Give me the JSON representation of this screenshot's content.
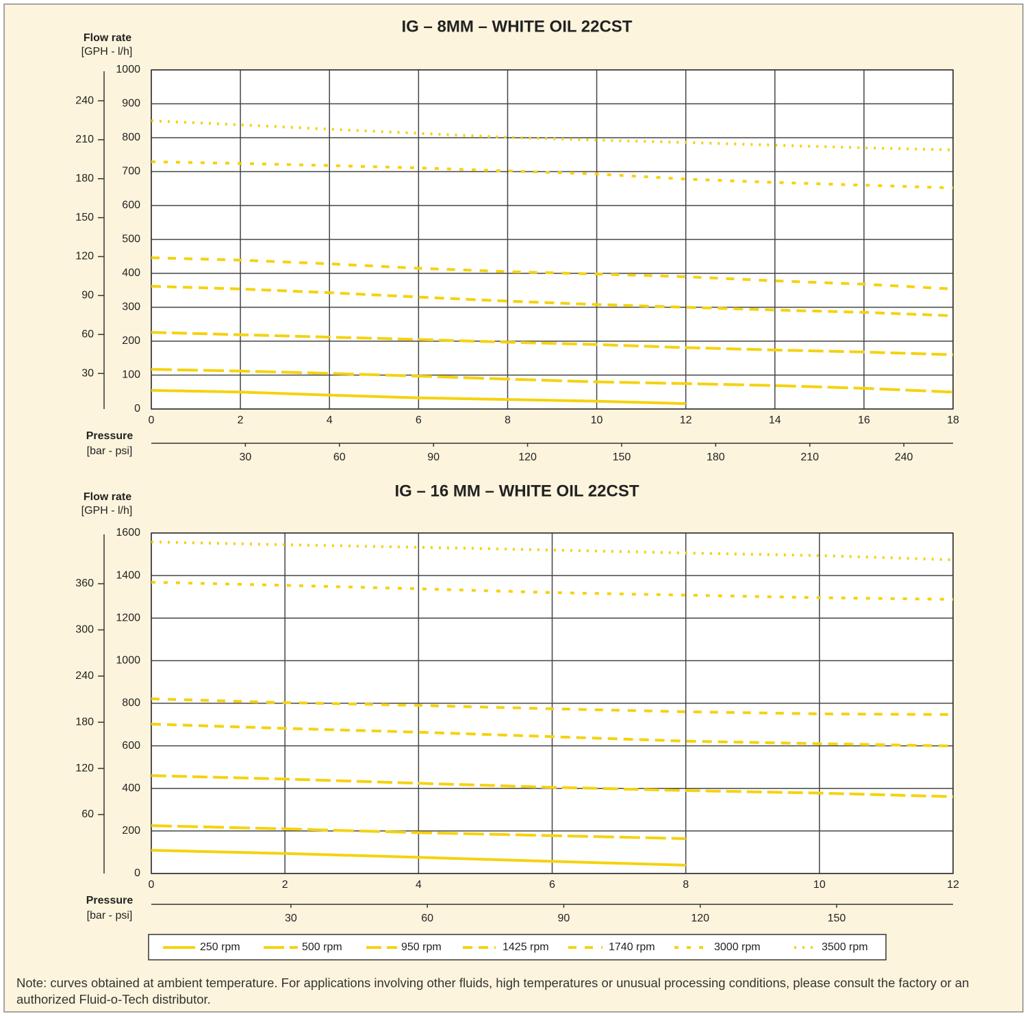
{
  "chart_data": [
    {
      "type": "line",
      "title": "IG – 8MM – WHITE OIL 22CST",
      "y_label": "Flow rate",
      "y_unit_label": "[GPH - l/h]",
      "x_label": "Pressure",
      "x_unit_label": "[bar - psi]",
      "xlim": [
        0,
        18
      ],
      "xticks": [
        0,
        2,
        4,
        6,
        8,
        10,
        12,
        14,
        16,
        18
      ],
      "ylim": [
        0,
        1000
      ],
      "yticks": [
        0,
        100,
        200,
        300,
        400,
        500,
        600,
        700,
        800,
        900,
        1000
      ],
      "y2lim": [
        2.6,
        263.8
      ],
      "y2ticks": [
        30,
        60,
        90,
        120,
        150,
        180,
        210,
        240
      ],
      "x2lim": [
        0,
        255.7
      ],
      "x2ticks": [
        30,
        60,
        90,
        120,
        150,
        180,
        210,
        240
      ],
      "grid": true,
      "series": [
        {
          "color": "#f5d20f",
          "x": [
            0,
            2,
            4,
            6,
            8,
            10,
            12
          ],
          "values": [
            55,
            50,
            41,
            33,
            28,
            23,
            16
          ]
        },
        {
          "color": "#f5d20f",
          "x": [
            0,
            2,
            4,
            6,
            8,
            10,
            12,
            14,
            16,
            18
          ],
          "values": [
            117,
            112,
            105,
            97,
            88,
            80,
            75,
            69,
            61,
            50
          ]
        },
        {
          "color": "#f5d20f",
          "x": [
            0,
            2,
            4,
            6,
            8,
            10,
            12,
            14,
            16,
            18
          ],
          "values": [
            226,
            219,
            212,
            205,
            197,
            190,
            181,
            174,
            168,
            160
          ]
        },
        {
          "color": "#f5d20f",
          "x": [
            0,
            2,
            4,
            6,
            8,
            10,
            12,
            14,
            16,
            18
          ],
          "values": [
            362,
            354,
            343,
            330,
            318,
            308,
            300,
            292,
            285,
            275
          ]
        },
        {
          "color": "#f5d20f",
          "x": [
            0,
            2,
            4,
            6,
            8,
            10,
            12,
            14,
            16,
            18
          ],
          "values": [
            446,
            439,
            428,
            415,
            405,
            398,
            390,
            378,
            368,
            354
          ]
        },
        {
          "color": "#f5d20f",
          "x": [
            0,
            2,
            4,
            6,
            8,
            10,
            12,
            14,
            16,
            18
          ],
          "values": [
            729,
            724,
            718,
            711,
            702,
            693,
            678,
            668,
            660,
            652
          ]
        },
        {
          "color": "#f5d20f",
          "x": [
            0,
            2,
            4,
            6,
            8,
            10,
            12,
            14,
            16,
            18
          ],
          "values": [
            850,
            838,
            825,
            813,
            801,
            793,
            786,
            778,
            770,
            764
          ]
        }
      ]
    },
    {
      "type": "line",
      "title": "IG – 16 MM – WHITE OIL 22CST",
      "y_label": "Flow rate",
      "y_unit_label": "[GPH - l/h]",
      "x_label": "Pressure",
      "x_unit_label": "[bar - psi]",
      "xlim": [
        0,
        12
      ],
      "xticks": [
        0,
        2,
        4,
        6,
        8,
        10,
        12
      ],
      "ylim": [
        0,
        1600
      ],
      "yticks": [
        0,
        200,
        400,
        600,
        800,
        1000,
        1200,
        1400,
        1600
      ],
      "y2lim": [
        -16.6,
        425.9
      ],
      "y2ticks": [
        60,
        120,
        180,
        240,
        300,
        360
      ],
      "x2lim": [
        -0.7,
        175.6
      ],
      "x2ticks": [
        30,
        60,
        90,
        120,
        150
      ],
      "grid": true,
      "series": [
        {
          "name": "250 rpm",
          "color": "#f5d20f",
          "x": [
            0,
            2,
            4,
            6,
            8
          ],
          "values": [
            109,
            94,
            76,
            57,
            39
          ]
        },
        {
          "name": "500 rpm",
          "color": "#f5d20f",
          "x": [
            0,
            2,
            4,
            6,
            8
          ],
          "values": [
            225,
            210,
            192,
            178,
            164
          ]
        },
        {
          "name": "950 rpm",
          "color": "#f5d20f",
          "x": [
            0,
            2,
            4,
            6,
            8,
            10,
            12
          ],
          "values": [
            460,
            444,
            424,
            405,
            390,
            378,
            361
          ]
        },
        {
          "name": "1425 rpm",
          "color": "#f5d20f",
          "x": [
            0,
            2,
            4,
            6,
            8,
            10,
            12
          ],
          "values": [
            702,
            682,
            664,
            643,
            622,
            610,
            599
          ]
        },
        {
          "name": "1740 rpm",
          "color": "#f5d20f",
          "x": [
            0,
            2,
            4,
            6,
            8,
            10,
            12
          ],
          "values": [
            821,
            803,
            790,
            774,
            760,
            750,
            747
          ]
        },
        {
          "name": "3000 rpm",
          "color": "#f5d20f",
          "x": [
            0,
            2,
            4,
            6,
            8,
            10,
            12
          ],
          "values": [
            1369,
            1354,
            1338,
            1320,
            1308,
            1296,
            1288
          ]
        },
        {
          "name": "3500 rpm",
          "color": "#f5d20f",
          "x": [
            0,
            2,
            4,
            6,
            8,
            10,
            12
          ],
          "values": [
            1558,
            1545,
            1533,
            1520,
            1506,
            1494,
            1474
          ]
        }
      ]
    }
  ],
  "note": "Note: curves obtained at ambient temperature. For applications involving other fluids, high temperatures or unusual processing conditions, please consult the factory or an authorized Fluid-o-Tech distributor."
}
